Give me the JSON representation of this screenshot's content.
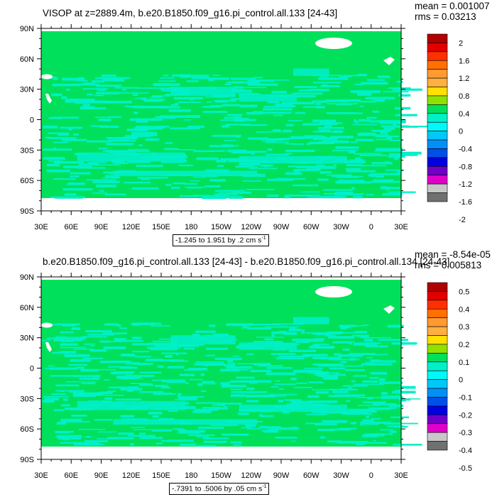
{
  "panels": [
    {
      "title": "VISOP at z=2889.4m, b.e20.B1850.f09_g16.pi_control.all.133 [24-43]",
      "stats": {
        "mean": "mean = 0.001007",
        "rms": "rms = 0.03213"
      },
      "range_text": "-1.245 to 1.951 by .2 cm s",
      "range_sup": "-1",
      "legend_labels": [
        "2",
        "1.6",
        "1.2",
        "0.8",
        "0.4",
        "0",
        "-0.4",
        "-0.8",
        "-1.2",
        "-1.6",
        "-2"
      ]
    },
    {
      "title": "b.e20.B1850.f09_g16.pi_control.all.133 [24-43] - b.e20.B1850.f09_g16.pi_control.all.134 [24-43]",
      "stats": {
        "mean": "mean = -8.54e-05",
        "rms": "rms = 0.005813"
      },
      "range_text": "-.7391 to .5006 by .05 cm s",
      "range_sup": "-1",
      "legend_labels": [
        "0.5",
        "0.4",
        "0.3",
        "0.2",
        "0.1",
        "0",
        "-0.1",
        "-0.2",
        "-0.3",
        "-0.4",
        "-0.5"
      ]
    }
  ],
  "axes": {
    "lat_labels": [
      "90N",
      "60N",
      "30N",
      "0",
      "30S",
      "60S",
      "90S"
    ],
    "lon_labels": [
      "30E",
      "60E",
      "90E",
      "120E",
      "150E",
      "180",
      "150W",
      "120W",
      "90W",
      "60W",
      "30W",
      "0",
      "30E"
    ]
  },
  "chart_data": [
    {
      "type": "heatmap",
      "variable": "VISOP",
      "depth": "z=2889.4m",
      "units": "cm s-1",
      "x_range": [
        "30E",
        "30E"
      ],
      "y_range": [
        "90S",
        "90N"
      ],
      "data_min": -1.245,
      "data_max": 1.951,
      "contour_interval": 0.2,
      "mean": 0.001007,
      "rms": 0.03213,
      "colorbar_levels": [
        2,
        1.6,
        1.2,
        0.8,
        0.4,
        0,
        -0.4,
        -0.8,
        -1.2,
        -1.6,
        -2
      ],
      "dominant_colors": [
        "#00e05a",
        "#00f0c8"
      ]
    },
    {
      "type": "heatmap",
      "description_of_difference": "133 minus 134",
      "units": "cm s-1",
      "x_range": [
        "30E",
        "30E"
      ],
      "y_range": [
        "90S",
        "90N"
      ],
      "data_min": -0.7391,
      "data_max": 0.5006,
      "contour_interval": 0.05,
      "mean": -8.54e-05,
      "rms": 0.005813,
      "colorbar_levels": [
        0.5,
        0.4,
        0.3,
        0.2,
        0.1,
        0,
        -0.1,
        -0.2,
        -0.3,
        -0.4,
        -0.5
      ],
      "dominant_colors": [
        "#00e05a",
        "#00f0c8"
      ]
    }
  ],
  "colors": {
    "palette": [
      "#b00000",
      "#e00000",
      "#ff3000",
      "#ff7000",
      "#ff9a30",
      "#ffb040",
      "#ffe000",
      "#90e000",
      "#00e05a",
      "#00f0c8",
      "#00f8f8",
      "#00c8f8",
      "#0090f8",
      "#0050e8",
      "#0000e0",
      "#7000c8",
      "#e000c8",
      "#c8c8c8",
      "#707070"
    ],
    "field_green": "#00e05a",
    "field_cyan": "#00f0c8"
  }
}
